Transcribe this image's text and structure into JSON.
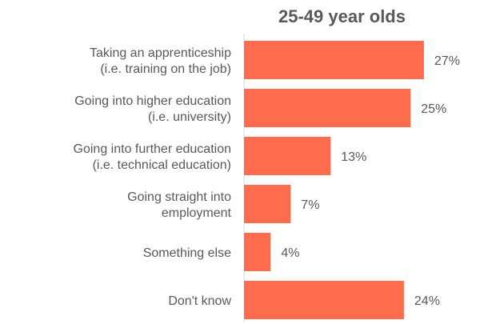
{
  "chart_data": {
    "type": "bar",
    "orientation": "horizontal",
    "title": "25-49 year olds",
    "categories": [
      [
        "Taking an apprenticeship",
        "(i.e. training on the job)"
      ],
      [
        "Going into higher education",
        "(i.e. university)"
      ],
      [
        "Going into further education",
        "(i.e. technical education)"
      ],
      [
        "Going straight into",
        "employment"
      ],
      [
        "Something else"
      ],
      [
        "Don't know"
      ]
    ],
    "values": [
      27,
      25,
      13,
      7,
      4,
      24
    ],
    "value_labels": [
      "27%",
      "25%",
      "13%",
      "7%",
      "4%",
      "24%"
    ],
    "unit": "%",
    "xlim": [
      0,
      30
    ],
    "grid": false,
    "legend": "none",
    "colors": {
      "bar": "#FF6B4D",
      "text": "#595959",
      "axis": "#D9D9D9"
    }
  }
}
